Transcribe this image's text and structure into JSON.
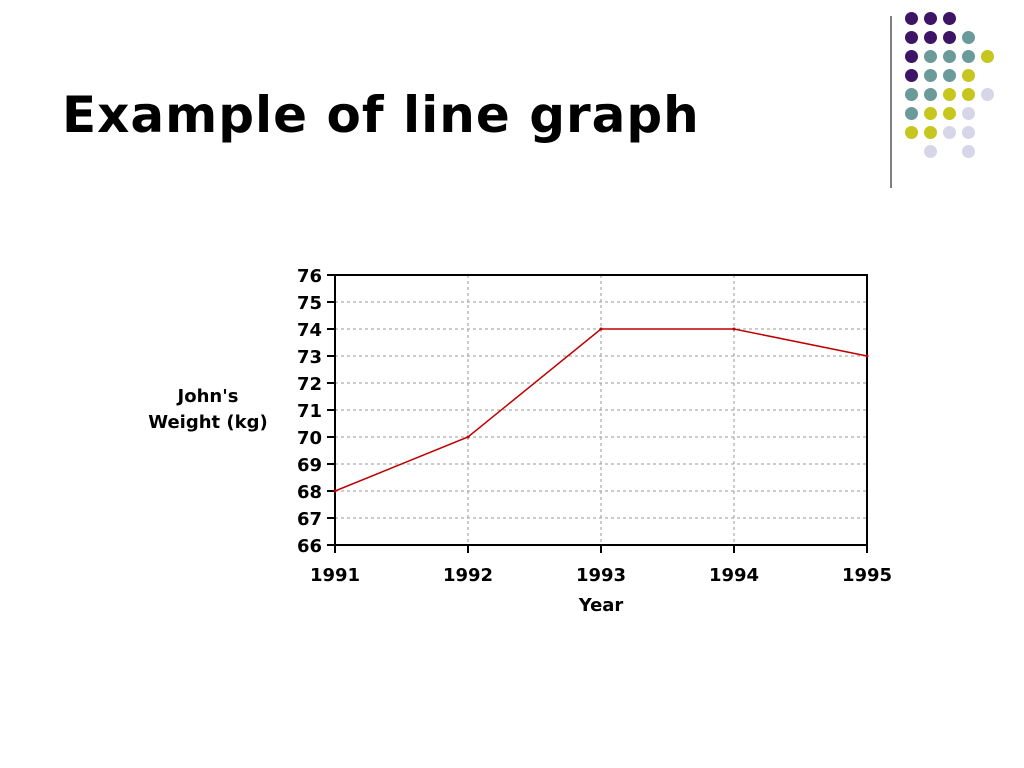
{
  "slide": {
    "title": "Example of line graph"
  },
  "decoration": {
    "dot_colors": {
      "purple": "#3d1466",
      "teal": "#6b9a9a",
      "yellow": "#c6c61e",
      "lavender": "#d6d6e8"
    },
    "dot_grid": [
      [
        "purple",
        "purple",
        "purple",
        null,
        null
      ],
      [
        "purple",
        "purple",
        "purple",
        "teal",
        null
      ],
      [
        "purple",
        "teal",
        "teal",
        "teal",
        "yellow"
      ],
      [
        "purple",
        "teal",
        "teal",
        "yellow",
        null
      ],
      [
        "teal",
        "teal",
        "yellow",
        "yellow",
        "lavender"
      ],
      [
        "teal",
        "yellow",
        "yellow",
        "lavender",
        null
      ],
      [
        "yellow",
        "yellow",
        "lavender",
        "lavender",
        null
      ],
      [
        null,
        "lavender",
        null,
        "lavender",
        null
      ]
    ]
  },
  "chart_data": {
    "type": "line",
    "title": "",
    "xlabel": "Year",
    "ylabel_lines": [
      "John's",
      "Weight (kg)"
    ],
    "x": [
      1991,
      1992,
      1993,
      1994,
      1995
    ],
    "x_tick_labels": [
      "1991",
      "1992",
      "1993",
      "1994",
      "1995"
    ],
    "y_ticks": [
      66,
      67,
      68,
      69,
      70,
      71,
      72,
      73,
      74,
      75,
      76
    ],
    "ylim": [
      66,
      76
    ],
    "series": [
      {
        "values": [
          68,
          70,
          74,
          74,
          73
        ],
        "color": "#c00000"
      }
    ],
    "grid": true,
    "grid_style": "dotted",
    "legend": "none"
  }
}
